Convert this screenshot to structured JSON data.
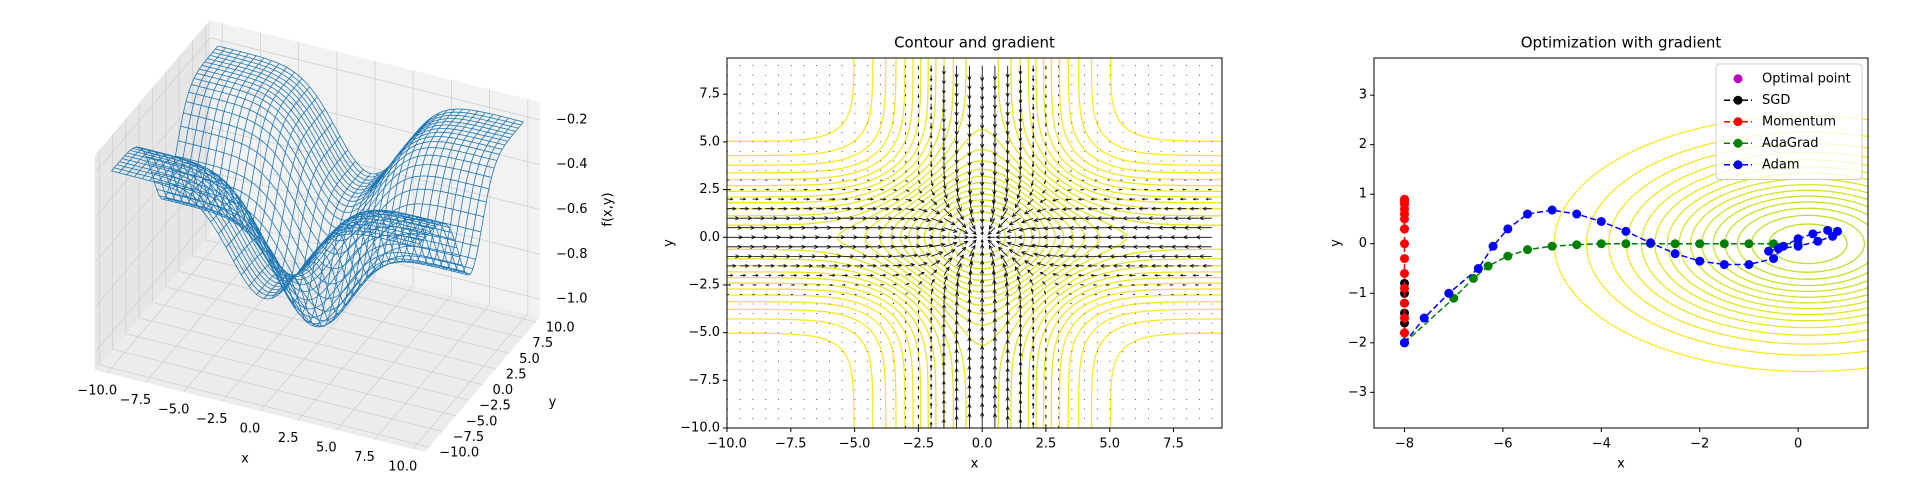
{
  "chart_data": [
    {
      "type": "surface3d",
      "xlabel": "x",
      "ylabel": "y",
      "zlabel": "f(x,y)",
      "color": "#1f77b4",
      "xlim": [
        -10.8,
        10.8
      ],
      "ylim": [
        -10.8,
        10.8
      ],
      "zlim": [
        -1.08,
        -0.12
      ],
      "xticks": [
        {
          "value": -10,
          "label": "−10.0"
        },
        {
          "value": -7.5,
          "label": "−7.5"
        },
        {
          "value": -5,
          "label": "−5.0"
        },
        {
          "value": -2.5,
          "label": "−2.5"
        },
        {
          "value": 0,
          "label": "0.0"
        },
        2.5,
        {
          "value": 5,
          "label": "5.0"
        },
        7.5,
        {
          "value": 10,
          "label": "10.0"
        }
      ],
      "yticks": [
        {
          "value": -10,
          "label": "−10.0"
        },
        {
          "value": -7.5,
          "label": "−7.5"
        },
        {
          "value": -5,
          "label": "−5.0"
        },
        {
          "value": -2.5,
          "label": "−2.5"
        },
        {
          "value": 0,
          "label": "0.0"
        },
        2.5,
        {
          "value": 5,
          "label": "5.0"
        },
        7.5,
        {
          "value": 10,
          "label": "10.0"
        }
      ],
      "zticks": [
        {
          "value": -1,
          "label": "−1.0"
        },
        {
          "value": -0.8,
          "label": "−0.8"
        },
        {
          "value": -0.6,
          "label": "−0.6"
        },
        {
          "value": -0.4,
          "label": "−0.4"
        },
        {
          "value": -0.2,
          "label": "−0.2"
        }
      ]
    },
    {
      "type": "contour",
      "title": "Contour and gradient",
      "xlabel": "x",
      "ylabel": "y",
      "xlim": [
        -10,
        9.4
      ],
      "ylim": [
        -10,
        9.4
      ],
      "xticks": [
        {
          "value": -10,
          "label": "−10.0"
        },
        {
          "value": -7.5,
          "label": "−7.5"
        },
        {
          "value": -5,
          "label": "−5.0"
        },
        {
          "value": -2.5,
          "label": "−2.5"
        },
        {
          "value": 0,
          "label": "0.0"
        },
        2.5,
        {
          "value": 5,
          "label": "5.0"
        },
        7.5
      ],
      "yticks": [
        {
          "value": -10,
          "label": "−10.0"
        },
        {
          "value": -7.5,
          "label": "−7.5"
        },
        {
          "value": -5,
          "label": "−5.0"
        },
        {
          "value": -2.5,
          "label": "−2.5"
        },
        {
          "value": 0,
          "label": "0.0"
        },
        2.5,
        {
          "value": 5,
          "label": "5.0"
        },
        7.5
      ]
    },
    {
      "type": "line",
      "title": "Optimization with gradient",
      "xlabel": "x",
      "ylabel": "y",
      "legend": "upper right",
      "xlim": [
        -8.62,
        1.42
      ],
      "ylim": [
        -3.72,
        3.75
      ],
      "xticks": [
        {
          "value": -8,
          "label": "−8"
        },
        {
          "value": -6,
          "label": "−6"
        },
        {
          "value": -4,
          "label": "−4"
        },
        {
          "value": -2,
          "label": "−2"
        },
        0
      ],
      "yticks": [
        {
          "value": -3,
          "label": "−3"
        },
        {
          "value": -2,
          "label": "−2"
        },
        {
          "value": -1,
          "label": "−1"
        },
        0,
        1,
        2,
        3
      ],
      "series": [
        {
          "name": "Optimal point",
          "color": "#bf00bf",
          "linestyle": "none",
          "x": [
            0
          ],
          "values": [
            0
          ]
        },
        {
          "name": "SGD",
          "color": "#000000",
          "linestyle": "dashed",
          "x": [
            -8,
            -8,
            -8,
            -8,
            -8,
            -8,
            -8
          ],
          "values": [
            -2,
            -1.8,
            -1.6,
            -1.4,
            -1.2,
            -1.0,
            -0.8
          ]
        },
        {
          "name": "Momentum",
          "color": "#ff0000",
          "linestyle": "dashed",
          "x": [
            -8,
            -8,
            -8,
            -8,
            -8,
            -8,
            -8,
            -8,
            -8,
            -8,
            -8,
            -8,
            -8,
            -8,
            -8
          ],
          "values": [
            -1.8,
            -1.5,
            -1.2,
            -0.9,
            -0.6,
            -0.3,
            0,
            0.3,
            0.5,
            0.7,
            0.85,
            0.9,
            0.8,
            0.6,
            0.3
          ]
        },
        {
          "name": "AdaGrad",
          "color": "#008000",
          "linestyle": "dashed",
          "x": [
            -8,
            -7,
            -6.6,
            -6.3,
            -5.9,
            -5.5,
            -5,
            -4.5,
            -4,
            -3.5,
            -3,
            -2.5,
            -2,
            -1.5,
            -1,
            -0.5,
            0
          ],
          "values": [
            -2,
            -1.1,
            -0.7,
            -0.45,
            -0.25,
            -0.12,
            -0.05,
            -0.02,
            0,
            0,
            0,
            0,
            0,
            0,
            0,
            0,
            0
          ]
        },
        {
          "name": "Adam",
          "color": "#0000ff",
          "linestyle": "dashed",
          "x": [
            -8,
            -7.6,
            -7.1,
            -6.5,
            -6.2,
            -5.9,
            -5.5,
            -5.0,
            -4.5,
            -4,
            -3.5,
            -3,
            -2.5,
            -2,
            -1.5,
            -1,
            -0.5,
            -0.3,
            0,
            0.3,
            0.6,
            0.8,
            0.7,
            0.4,
            0,
            -0.4,
            -0.6
          ],
          "values": [
            -2,
            -1.5,
            -1.0,
            -0.5,
            -0.05,
            0.3,
            0.6,
            0.68,
            0.6,
            0.45,
            0.25,
            0.02,
            -0.2,
            -0.35,
            -0.42,
            -0.42,
            -0.3,
            -0.05,
            0.1,
            0.2,
            0.27,
            0.25,
            0.15,
            0.05,
            -0.05,
            -0.1,
            -0.15
          ]
        }
      ]
    }
  ]
}
